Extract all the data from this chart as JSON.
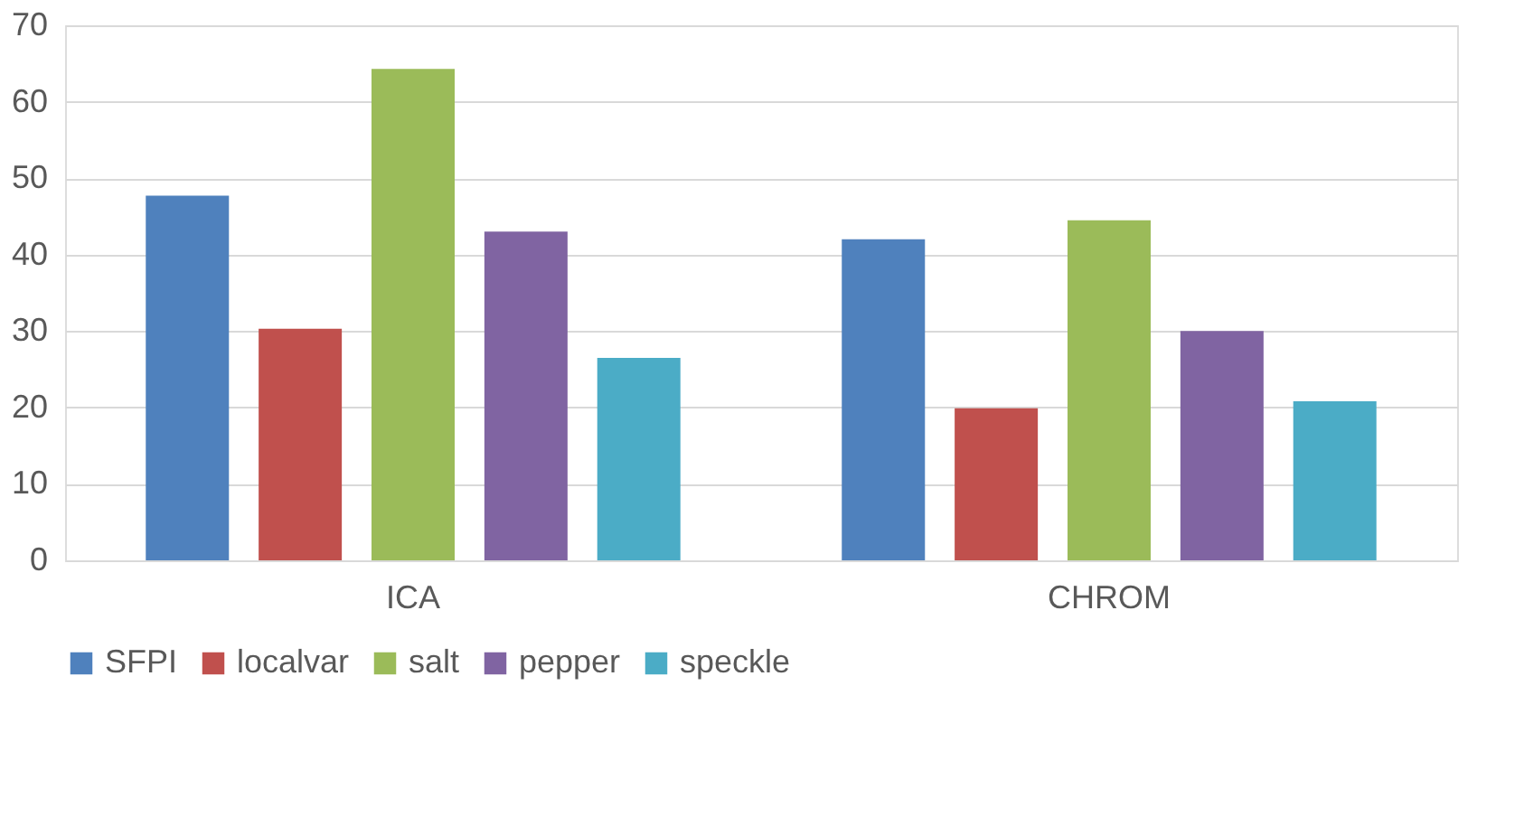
{
  "chart_data": {
    "type": "bar",
    "categories": [
      "ICA",
      "CHROM"
    ],
    "series": [
      {
        "name": "SFPI",
        "color": "#4f81bd",
        "values": [
          47.7,
          42.0
        ]
      },
      {
        "name": "localvar",
        "color": "#c0504d",
        "values": [
          30.3,
          19.9
        ]
      },
      {
        "name": "salt",
        "color": "#9bbb59",
        "values": [
          64.3,
          44.5
        ]
      },
      {
        "name": "pepper",
        "color": "#8064a2",
        "values": [
          43.0,
          30.0
        ]
      },
      {
        "name": "speckle",
        "color": "#4bacc6",
        "values": [
          26.5,
          20.8
        ]
      }
    ],
    "ylim": [
      0,
      70
    ],
    "yticks": [
      0,
      10,
      20,
      30,
      40,
      50,
      60,
      70
    ],
    "grid": "y",
    "legend": "bottom"
  }
}
